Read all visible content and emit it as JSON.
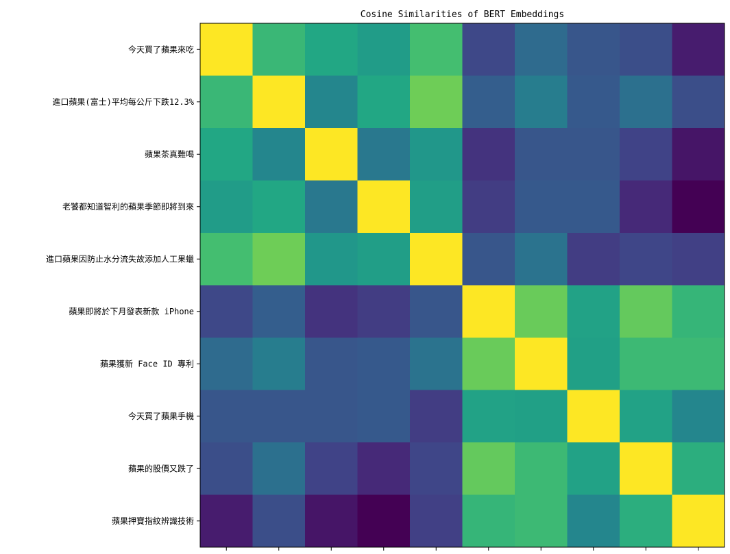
{
  "chart_data": {
    "type": "heatmap",
    "title": "Cosine Similarities of BERT Embeddings",
    "colormap": "viridis",
    "y_labels": [
      "今天買了蘋果來吃",
      "進口蘋果(富士)平均每公斤下跌12.3%",
      "蘋果茶真難喝",
      "老饕都知道智利的蘋果季節即將到來",
      "進口蘋果因防止水分流失故添加人工果蠟",
      "蘋果即將於下月發表新款 iPhone",
      "蘋果獲新 Face ID 專利",
      "今天買了蘋果手機",
      "蘋果的股價又跌了",
      "蘋果押寶指紋辨識技術"
    ],
    "x_tick_count": 10,
    "x_tick_labels_visible": false,
    "values": [
      [
        1.0,
        0.67,
        0.6,
        0.55,
        0.7,
        0.22,
        0.35,
        0.27,
        0.24,
        0.08
      ],
      [
        0.67,
        1.0,
        0.46,
        0.6,
        0.78,
        0.3,
        0.42,
        0.28,
        0.37,
        0.24
      ],
      [
        0.6,
        0.46,
        1.0,
        0.4,
        0.53,
        0.15,
        0.27,
        0.27,
        0.2,
        0.06
      ],
      [
        0.55,
        0.6,
        0.4,
        1.0,
        0.56,
        0.18,
        0.28,
        0.28,
        0.12,
        0.0
      ],
      [
        0.7,
        0.78,
        0.53,
        0.56,
        1.0,
        0.27,
        0.38,
        0.18,
        0.21,
        0.19
      ],
      [
        0.22,
        0.3,
        0.15,
        0.18,
        0.27,
        1.0,
        0.77,
        0.58,
        0.76,
        0.66
      ],
      [
        0.35,
        0.42,
        0.27,
        0.28,
        0.38,
        0.77,
        1.0,
        0.57,
        0.68,
        0.68
      ],
      [
        0.27,
        0.27,
        0.27,
        0.28,
        0.18,
        0.58,
        0.57,
        1.0,
        0.58,
        0.46
      ],
      [
        0.24,
        0.37,
        0.2,
        0.12,
        0.21,
        0.76,
        0.68,
        0.58,
        1.0,
        0.63
      ],
      [
        0.08,
        0.24,
        0.06,
        0.0,
        0.19,
        0.66,
        0.68,
        0.46,
        0.63,
        1.0
      ]
    ],
    "vmin": 0.0,
    "vmax": 1.0,
    "grid": false,
    "legend": "none"
  }
}
